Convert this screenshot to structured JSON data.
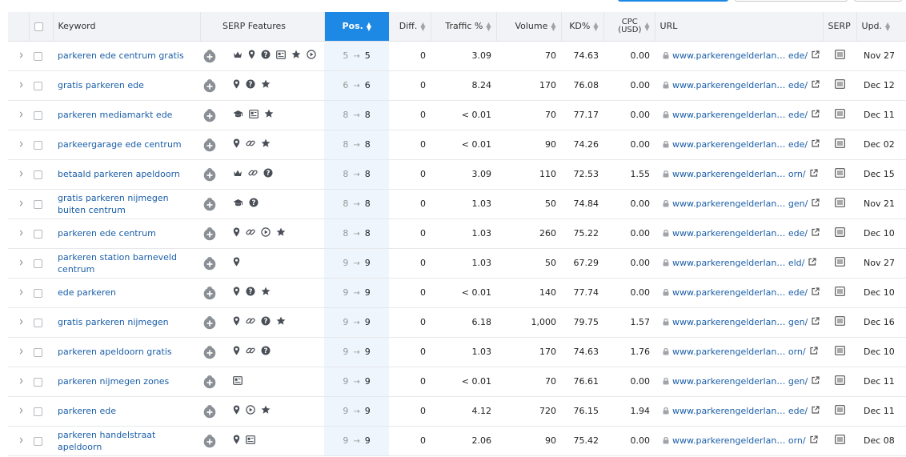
{
  "columns": {
    "keyword": "Keyword",
    "serp_features": "SERP Features",
    "pos": "Pos.",
    "diff": "Diff.",
    "traffic": "Traffic %",
    "volume": "Volume",
    "kd": "KD%",
    "cpc_line1": "CPC",
    "cpc_line2": "(USD)",
    "url": "URL",
    "serp": "SERP",
    "upd": "Upd."
  },
  "rows": [
    {
      "keyword": "parkeren ede centrum gratis",
      "features": [
        "crown",
        "pin",
        "question",
        "image",
        "star",
        "video"
      ],
      "prev_pos": "5",
      "pos": "5",
      "diff": "0",
      "traffic": "3.09",
      "volume": "70",
      "kd": "74.63",
      "cpc": "0.00",
      "url_domain": "www.parkerengelderlan…",
      "url_tail": "ede/",
      "upd": "Nov 27"
    },
    {
      "keyword": "gratis parkeren ede",
      "features": [
        "pin",
        "question",
        "star"
      ],
      "prev_pos": "6",
      "pos": "6",
      "diff": "0",
      "traffic": "8.24",
      "volume": "170",
      "kd": "76.08",
      "cpc": "0.00",
      "url_domain": "www.parkerengelderlan…",
      "url_tail": "ede/",
      "upd": "Dec 12"
    },
    {
      "keyword": "parkeren mediamarkt ede",
      "features": [
        "cap",
        "image",
        "star"
      ],
      "prev_pos": "8",
      "pos": "8",
      "diff": "0",
      "traffic": "< 0.01",
      "volume": "70",
      "kd": "77.17",
      "cpc": "0.00",
      "url_domain": "www.parkerengelderlan…",
      "url_tail": "ede/",
      "upd": "Dec 11"
    },
    {
      "keyword": "parkeergarage ede centrum",
      "features": [
        "pin",
        "link",
        "star"
      ],
      "prev_pos": "8",
      "pos": "8",
      "diff": "0",
      "traffic": "< 0.01",
      "volume": "90",
      "kd": "74.26",
      "cpc": "0.00",
      "url_domain": "www.parkerengelderlan…",
      "url_tail": "ede/",
      "upd": "Dec 02"
    },
    {
      "keyword": "betaald parkeren apeldoorn",
      "features": [
        "crown",
        "link",
        "question"
      ],
      "prev_pos": "8",
      "pos": "8",
      "diff": "0",
      "traffic": "3.09",
      "volume": "110",
      "kd": "72.53",
      "cpc": "1.55",
      "url_domain": "www.parkerengelderlan…",
      "url_tail": "orn/",
      "upd": "Dec 15"
    },
    {
      "keyword": "gratis parkeren nijmegen buiten centrum",
      "features": [
        "cap",
        "question"
      ],
      "prev_pos": "8",
      "pos": "8",
      "diff": "0",
      "traffic": "1.03",
      "volume": "50",
      "kd": "74.84",
      "cpc": "0.00",
      "url_domain": "www.parkerengelderlan…",
      "url_tail": "gen/",
      "upd": "Nov 21"
    },
    {
      "keyword": "parkeren ede centrum",
      "features": [
        "pin",
        "link",
        "video",
        "star"
      ],
      "prev_pos": "8",
      "pos": "8",
      "diff": "0",
      "traffic": "1.03",
      "volume": "260",
      "kd": "75.22",
      "cpc": "0.00",
      "url_domain": "www.parkerengelderlan…",
      "url_tail": "ede/",
      "upd": "Dec 10"
    },
    {
      "keyword": "parkeren station barneveld centrum",
      "features": [
        "pin"
      ],
      "prev_pos": "9",
      "pos": "9",
      "diff": "0",
      "traffic": "1.03",
      "volume": "50",
      "kd": "67.29",
      "cpc": "0.00",
      "url_domain": "www.parkerengelderlan…",
      "url_tail": "eld/",
      "upd": "Nov 27"
    },
    {
      "keyword": "ede parkeren",
      "features": [
        "pin",
        "question",
        "star"
      ],
      "prev_pos": "9",
      "pos": "9",
      "diff": "0",
      "traffic": "< 0.01",
      "volume": "140",
      "kd": "77.74",
      "cpc": "0.00",
      "url_domain": "www.parkerengelderlan…",
      "url_tail": "ede/",
      "upd": "Dec 10"
    },
    {
      "keyword": "gratis parkeren nijmegen",
      "features": [
        "pin",
        "link",
        "question",
        "star"
      ],
      "prev_pos": "9",
      "pos": "9",
      "diff": "0",
      "traffic": "6.18",
      "volume": "1,000",
      "kd": "79.75",
      "cpc": "1.57",
      "url_domain": "www.parkerengelderlan…",
      "url_tail": "gen/",
      "upd": "Dec 16"
    },
    {
      "keyword": "parkeren apeldoorn gratis",
      "features": [
        "pin",
        "link",
        "question"
      ],
      "prev_pos": "9",
      "pos": "9",
      "diff": "0",
      "traffic": "1.03",
      "volume": "170",
      "kd": "74.63",
      "cpc": "1.76",
      "url_domain": "www.parkerengelderlan…",
      "url_tail": "orn/",
      "upd": "Dec 10"
    },
    {
      "keyword": "parkeren nijmegen zones",
      "features": [
        "image"
      ],
      "prev_pos": "9",
      "pos": "9",
      "diff": "0",
      "traffic": "< 0.01",
      "volume": "70",
      "kd": "76.61",
      "cpc": "0.00",
      "url_domain": "www.parkerengelderlan…",
      "url_tail": "gen/",
      "upd": "Dec 11"
    },
    {
      "keyword": "parkeren ede",
      "features": [
        "pin",
        "video",
        "star"
      ],
      "prev_pos": "9",
      "pos": "9",
      "diff": "0",
      "traffic": "4.12",
      "volume": "720",
      "kd": "76.15",
      "cpc": "1.94",
      "url_domain": "www.parkerengelderlan…",
      "url_tail": "ede/",
      "upd": "Dec 11"
    },
    {
      "keyword": "parkeren handelstraat apeldoorn",
      "features": [
        "pin",
        "image"
      ],
      "prev_pos": "9",
      "pos": "9",
      "diff": "0",
      "traffic": "2.06",
      "volume": "90",
      "kd": "75.42",
      "cpc": "0.00",
      "url_domain": "www.parkerengelderlan…",
      "url_tail": "orn/",
      "upd": "Dec 08"
    }
  ]
}
